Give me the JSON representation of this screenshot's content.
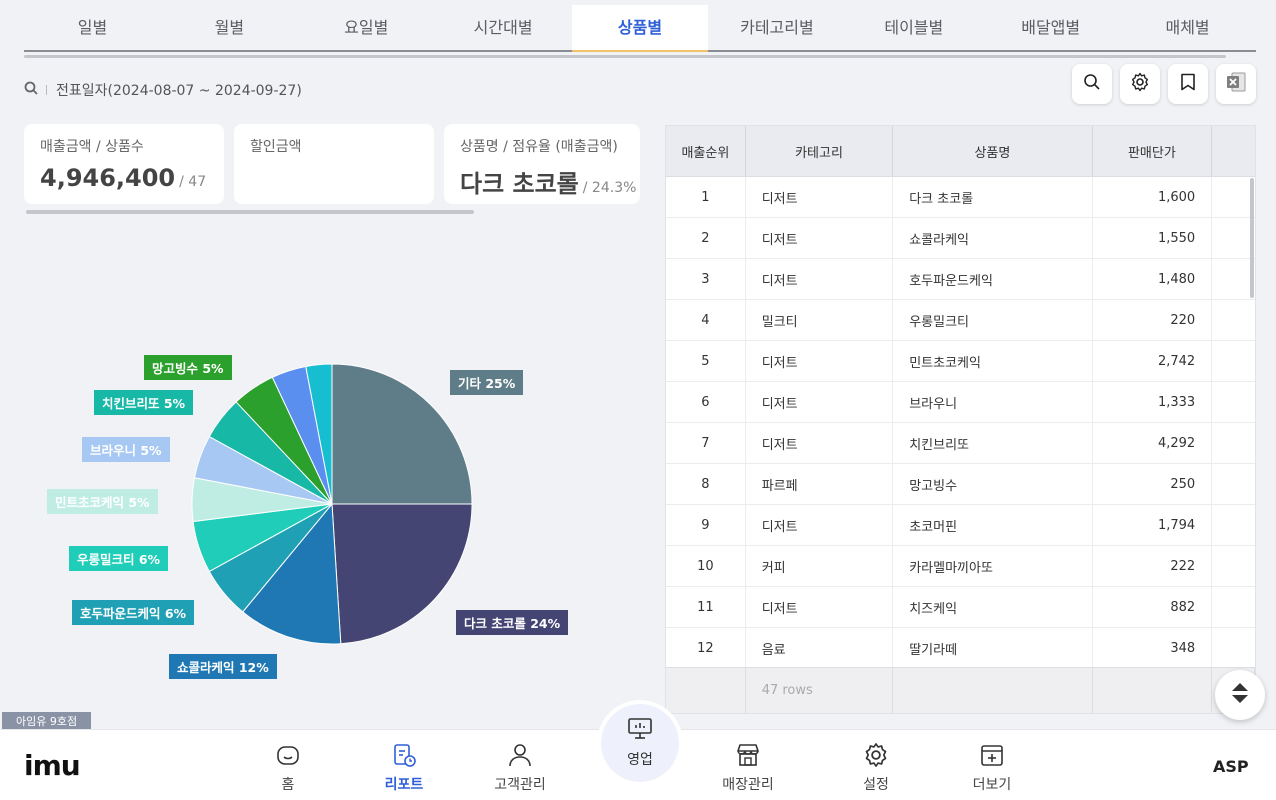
{
  "tabs": [
    {
      "label": "일별"
    },
    {
      "label": "월별"
    },
    {
      "label": "요일별"
    },
    {
      "label": "시간대별"
    },
    {
      "label": "상품별",
      "active": true
    },
    {
      "label": "카테고리별"
    },
    {
      "label": "테이블별"
    },
    {
      "label": "배달앱별"
    },
    {
      "label": "매체별"
    }
  ],
  "filter": {
    "text": "전표일자(2024-08-07 ~ 2024-09-27)",
    "icon": "search-icon"
  },
  "toolbar": {
    "icons": [
      "search-icon",
      "gear-icon",
      "bookmark-icon",
      "excel-icon"
    ]
  },
  "summary": {
    "sales": {
      "label": "매출금액 / 상품수",
      "value": "4,946,400",
      "sub": "/ 47"
    },
    "discount": {
      "label": "할인금액"
    },
    "product": {
      "label": "상품명 / 점유율 (매출금액)",
      "value": "다크 초코롤",
      "sub": "/ 24.3%"
    }
  },
  "chart_data": {
    "type": "pie",
    "slices": [
      {
        "label": "기타 25%",
        "value": 25,
        "color": "#5f7d88"
      },
      {
        "label": "다크 초코롤 24%",
        "value": 24,
        "color": "#454574"
      },
      {
        "label": "쇼콜라케익 12%",
        "value": 12,
        "color": "#1f78b4"
      },
      {
        "label": "호두파운드케익 6%",
        "value": 6,
        "color": "#1fa0b4"
      },
      {
        "label": "우롱밀크티 6%",
        "value": 6,
        "color": "#1fcdb8"
      },
      {
        "label": "민트초코케익 5%",
        "value": 5,
        "color": "#bfede4"
      },
      {
        "label": "브라우니 5%",
        "value": 5,
        "color": "#a6c8f2"
      },
      {
        "label": "치킨브리또 5%",
        "value": 5,
        "color": "#17b8a6"
      },
      {
        "label": "망고빙수 5%",
        "value": 5,
        "color": "#2ca02c"
      },
      {
        "label": "",
        "value": 4,
        "color": "#5a8ff0"
      },
      {
        "label": "",
        "value": 3,
        "color": "#17becf"
      }
    ]
  },
  "table": {
    "headers": [
      "매출순위",
      "카테고리",
      "상품명",
      "판매단가"
    ],
    "rows": [
      [
        "1",
        "디저트",
        "다크 초코롤",
        "1,600"
      ],
      [
        "2",
        "디저트",
        "쇼콜라케익",
        "1,550"
      ],
      [
        "3",
        "디저트",
        "호두파운드케익",
        "1,480"
      ],
      [
        "4",
        "밀크티",
        "우롱밀크티",
        "220"
      ],
      [
        "5",
        "디저트",
        "민트초코케익",
        "2,742"
      ],
      [
        "6",
        "디저트",
        "브라우니",
        "1,333"
      ],
      [
        "7",
        "디저트",
        "치킨브리또",
        "4,292"
      ],
      [
        "8",
        "파르페",
        "망고빙수",
        "250"
      ],
      [
        "9",
        "디저트",
        "초코머핀",
        "1,794"
      ],
      [
        "10",
        "커피",
        "카라멜마끼아또",
        "222"
      ],
      [
        "11",
        "디저트",
        "치즈케익",
        "882"
      ],
      [
        "12",
        "음료",
        "딸기라떼",
        "348"
      ]
    ],
    "footer": "47 rows"
  },
  "store": "아임유 9호점",
  "nav": {
    "logo": "imu",
    "items": [
      {
        "label": "홈",
        "icon": "home-icon"
      },
      {
        "label": "리포트",
        "icon": "report-icon",
        "active": true
      },
      {
        "label": "고객관리",
        "icon": "user-icon"
      },
      {
        "label": "영업",
        "icon": "pos-icon"
      },
      {
        "label": "매장관리",
        "icon": "store-icon"
      },
      {
        "label": "설정",
        "icon": "gear-icon"
      },
      {
        "label": "더보기",
        "icon": "more-icon"
      }
    ],
    "asp": "ASP"
  }
}
